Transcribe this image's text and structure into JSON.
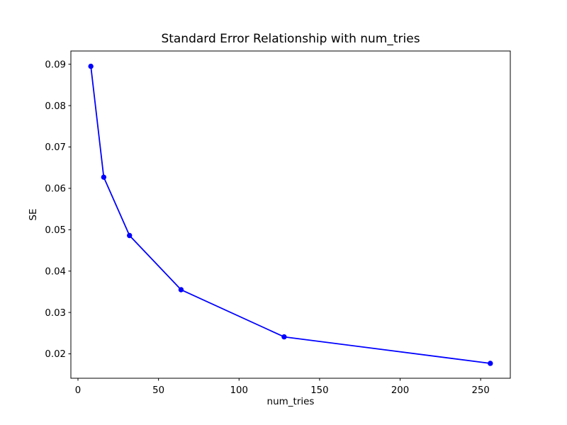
{
  "chart_data": {
    "type": "line",
    "title": "Standard Error Relationship with num_tries",
    "xlabel": "num_tries",
    "ylabel": "SE",
    "x": [
      8,
      16,
      32,
      64,
      128,
      256
    ],
    "y": [
      0.0895,
      0.0627,
      0.0486,
      0.0355,
      0.0241,
      0.0177
    ],
    "series": [
      {
        "name": "SE",
        "x": [
          8,
          16,
          32,
          64,
          128,
          256
        ],
        "y": [
          0.0895,
          0.0627,
          0.0486,
          0.0355,
          0.0241,
          0.0177
        ]
      }
    ],
    "xlim": [
      -4.4,
      268.4
    ],
    "ylim": [
      0.0141,
      0.0932
    ],
    "x_ticks": [
      0,
      50,
      100,
      150,
      200,
      250
    ],
    "x_tick_labels": [
      "0",
      "50",
      "100",
      "150",
      "200",
      "250"
    ],
    "y_ticks": [
      0.02,
      0.03,
      0.04,
      0.05,
      0.06,
      0.07,
      0.08,
      0.09
    ],
    "y_tick_labels": [
      "0.02",
      "0.03",
      "0.04",
      "0.05",
      "0.06",
      "0.07",
      "0.08",
      "0.09"
    ],
    "grid": false,
    "legend": null,
    "line_color": "#0000ff",
    "marker": "circle",
    "marker_color": "#0000ff",
    "axis_color": "#000000",
    "background_color": "#ffffff"
  }
}
